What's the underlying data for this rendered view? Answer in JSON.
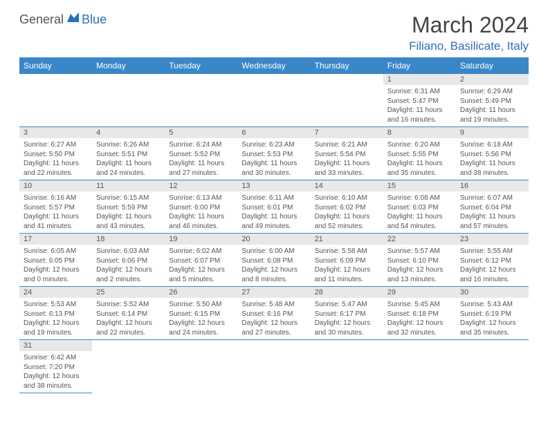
{
  "logo": {
    "general": "General",
    "blue": "Blue"
  },
  "title": "March 2024",
  "location": "Filiano, Basilicate, Italy",
  "colors": {
    "header_bg": "#3a87c8",
    "header_text": "#ffffff",
    "daynum_bg": "#e8e8e8",
    "text": "#555555",
    "accent": "#2a6fb5"
  },
  "weekdays": [
    "Sunday",
    "Monday",
    "Tuesday",
    "Wednesday",
    "Thursday",
    "Friday",
    "Saturday"
  ],
  "weeks": [
    [
      {
        "empty": true
      },
      {
        "empty": true
      },
      {
        "empty": true
      },
      {
        "empty": true
      },
      {
        "empty": true
      },
      {
        "n": "1",
        "sr": "Sunrise: 6:31 AM",
        "ss": "Sunset: 5:47 PM",
        "d1": "Daylight: 11 hours",
        "d2": "and 16 minutes."
      },
      {
        "n": "2",
        "sr": "Sunrise: 6:29 AM",
        "ss": "Sunset: 5:49 PM",
        "d1": "Daylight: 11 hours",
        "d2": "and 19 minutes."
      }
    ],
    [
      {
        "n": "3",
        "sr": "Sunrise: 6:27 AM",
        "ss": "Sunset: 5:50 PM",
        "d1": "Daylight: 11 hours",
        "d2": "and 22 minutes."
      },
      {
        "n": "4",
        "sr": "Sunrise: 6:26 AM",
        "ss": "Sunset: 5:51 PM",
        "d1": "Daylight: 11 hours",
        "d2": "and 24 minutes."
      },
      {
        "n": "5",
        "sr": "Sunrise: 6:24 AM",
        "ss": "Sunset: 5:52 PM",
        "d1": "Daylight: 11 hours",
        "d2": "and 27 minutes."
      },
      {
        "n": "6",
        "sr": "Sunrise: 6:23 AM",
        "ss": "Sunset: 5:53 PM",
        "d1": "Daylight: 11 hours",
        "d2": "and 30 minutes."
      },
      {
        "n": "7",
        "sr": "Sunrise: 6:21 AM",
        "ss": "Sunset: 5:54 PM",
        "d1": "Daylight: 11 hours",
        "d2": "and 33 minutes."
      },
      {
        "n": "8",
        "sr": "Sunrise: 6:20 AM",
        "ss": "Sunset: 5:55 PM",
        "d1": "Daylight: 11 hours",
        "d2": "and 35 minutes."
      },
      {
        "n": "9",
        "sr": "Sunrise: 6:18 AM",
        "ss": "Sunset: 5:56 PM",
        "d1": "Daylight: 11 hours",
        "d2": "and 38 minutes."
      }
    ],
    [
      {
        "n": "10",
        "sr": "Sunrise: 6:16 AM",
        "ss": "Sunset: 5:57 PM",
        "d1": "Daylight: 11 hours",
        "d2": "and 41 minutes."
      },
      {
        "n": "11",
        "sr": "Sunrise: 6:15 AM",
        "ss": "Sunset: 5:59 PM",
        "d1": "Daylight: 11 hours",
        "d2": "and 43 minutes."
      },
      {
        "n": "12",
        "sr": "Sunrise: 6:13 AM",
        "ss": "Sunset: 6:00 PM",
        "d1": "Daylight: 11 hours",
        "d2": "and 46 minutes."
      },
      {
        "n": "13",
        "sr": "Sunrise: 6:11 AM",
        "ss": "Sunset: 6:01 PM",
        "d1": "Daylight: 11 hours",
        "d2": "and 49 minutes."
      },
      {
        "n": "14",
        "sr": "Sunrise: 6:10 AM",
        "ss": "Sunset: 6:02 PM",
        "d1": "Daylight: 11 hours",
        "d2": "and 52 minutes."
      },
      {
        "n": "15",
        "sr": "Sunrise: 6:08 AM",
        "ss": "Sunset: 6:03 PM",
        "d1": "Daylight: 11 hours",
        "d2": "and 54 minutes."
      },
      {
        "n": "16",
        "sr": "Sunrise: 6:07 AM",
        "ss": "Sunset: 6:04 PM",
        "d1": "Daylight: 11 hours",
        "d2": "and 57 minutes."
      }
    ],
    [
      {
        "n": "17",
        "sr": "Sunrise: 6:05 AM",
        "ss": "Sunset: 6:05 PM",
        "d1": "Daylight: 12 hours",
        "d2": "and 0 minutes."
      },
      {
        "n": "18",
        "sr": "Sunrise: 6:03 AM",
        "ss": "Sunset: 6:06 PM",
        "d1": "Daylight: 12 hours",
        "d2": "and 2 minutes."
      },
      {
        "n": "19",
        "sr": "Sunrise: 6:02 AM",
        "ss": "Sunset: 6:07 PM",
        "d1": "Daylight: 12 hours",
        "d2": "and 5 minutes."
      },
      {
        "n": "20",
        "sr": "Sunrise: 6:00 AM",
        "ss": "Sunset: 6:08 PM",
        "d1": "Daylight: 12 hours",
        "d2": "and 8 minutes."
      },
      {
        "n": "21",
        "sr": "Sunrise: 5:58 AM",
        "ss": "Sunset: 6:09 PM",
        "d1": "Daylight: 12 hours",
        "d2": "and 11 minutes."
      },
      {
        "n": "22",
        "sr": "Sunrise: 5:57 AM",
        "ss": "Sunset: 6:10 PM",
        "d1": "Daylight: 12 hours",
        "d2": "and 13 minutes."
      },
      {
        "n": "23",
        "sr": "Sunrise: 5:55 AM",
        "ss": "Sunset: 6:12 PM",
        "d1": "Daylight: 12 hours",
        "d2": "and 16 minutes."
      }
    ],
    [
      {
        "n": "24",
        "sr": "Sunrise: 5:53 AM",
        "ss": "Sunset: 6:13 PM",
        "d1": "Daylight: 12 hours",
        "d2": "and 19 minutes."
      },
      {
        "n": "25",
        "sr": "Sunrise: 5:52 AM",
        "ss": "Sunset: 6:14 PM",
        "d1": "Daylight: 12 hours",
        "d2": "and 22 minutes."
      },
      {
        "n": "26",
        "sr": "Sunrise: 5:50 AM",
        "ss": "Sunset: 6:15 PM",
        "d1": "Daylight: 12 hours",
        "d2": "and 24 minutes."
      },
      {
        "n": "27",
        "sr": "Sunrise: 5:48 AM",
        "ss": "Sunset: 6:16 PM",
        "d1": "Daylight: 12 hours",
        "d2": "and 27 minutes."
      },
      {
        "n": "28",
        "sr": "Sunrise: 5:47 AM",
        "ss": "Sunset: 6:17 PM",
        "d1": "Daylight: 12 hours",
        "d2": "and 30 minutes."
      },
      {
        "n": "29",
        "sr": "Sunrise: 5:45 AM",
        "ss": "Sunset: 6:18 PM",
        "d1": "Daylight: 12 hours",
        "d2": "and 32 minutes."
      },
      {
        "n": "30",
        "sr": "Sunrise: 5:43 AM",
        "ss": "Sunset: 6:19 PM",
        "d1": "Daylight: 12 hours",
        "d2": "and 35 minutes."
      }
    ],
    [
      {
        "n": "31",
        "sr": "Sunrise: 6:42 AM",
        "ss": "Sunset: 7:20 PM",
        "d1": "Daylight: 12 hours",
        "d2": "and 38 minutes."
      },
      {
        "empty": true
      },
      {
        "empty": true
      },
      {
        "empty": true
      },
      {
        "empty": true
      },
      {
        "empty": true
      },
      {
        "empty": true
      }
    ]
  ]
}
